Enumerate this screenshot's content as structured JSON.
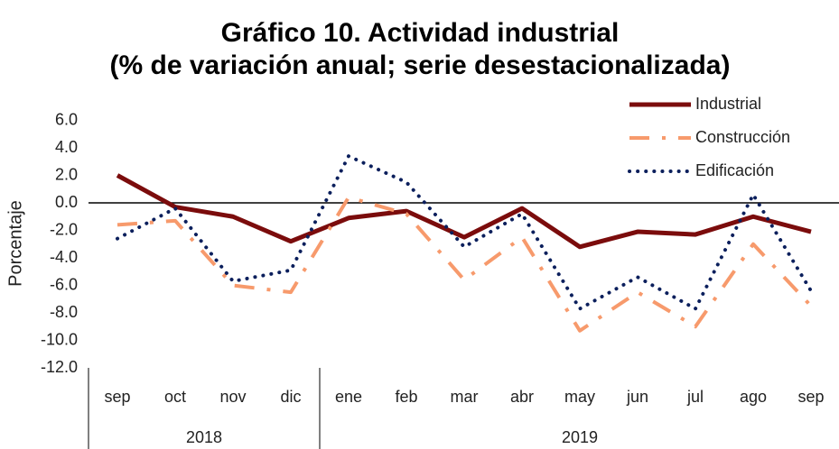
{
  "chart_data": {
    "type": "line",
    "title": [
      "Gráfico 10. Actividad industrial",
      "(% de variación anual; serie desestacionalizada)"
    ],
    "y_label": "Porcentaje",
    "categories": [
      "sep",
      "oct",
      "nov",
      "dic",
      "ene",
      "feb",
      "mar",
      "abr",
      "may",
      "jun",
      "jul",
      "ago",
      "sep"
    ],
    "groups": [
      {
        "label": "2018",
        "span": 4
      },
      {
        "label": "2019",
        "span": 9
      }
    ],
    "series": [
      {
        "name": "Industrial",
        "color": "#7b0c0c",
        "style": "solid",
        "values": [
          2.0,
          -0.3,
          -1.0,
          -2.8,
          -1.1,
          -0.6,
          -2.5,
          -0.4,
          -3.2,
          -2.1,
          -2.3,
          -1.0,
          -2.1
        ]
      },
      {
        "name": "Construcción",
        "color": "#f79a6c",
        "style": "dashdot",
        "values": [
          -1.6,
          -1.3,
          -6.0,
          -6.5,
          0.4,
          -0.8,
          -5.6,
          -2.5,
          -9.3,
          -6.5,
          -9.0,
          -3.0,
          -7.5
        ]
      },
      {
        "name": "Edificación",
        "color": "#0b1f5c",
        "style": "dotted",
        "values": [
          -2.6,
          -0.4,
          -5.7,
          -4.9,
          3.4,
          1.5,
          -3.2,
          -0.8,
          -7.7,
          -5.4,
          -7.7,
          0.6,
          -6.4
        ]
      }
    ],
    "ylim": [
      -12,
      6
    ],
    "yticks": [
      {
        "value": 6,
        "label": "6.0"
      },
      {
        "value": 4,
        "label": "4.0"
      },
      {
        "value": 2,
        "label": "2.0"
      },
      {
        "value": 0,
        "label": "0.0"
      },
      {
        "value": -2,
        "label": "-2.0"
      },
      {
        "value": -4,
        "label": "-4.0"
      },
      {
        "value": -6,
        "label": "-6.0"
      },
      {
        "value": -8,
        "label": "-8.0"
      },
      {
        "value": -10,
        "label": "-10.0"
      },
      {
        "value": -12,
        "label": "-12.0"
      }
    ],
    "legend": "top-right"
  }
}
